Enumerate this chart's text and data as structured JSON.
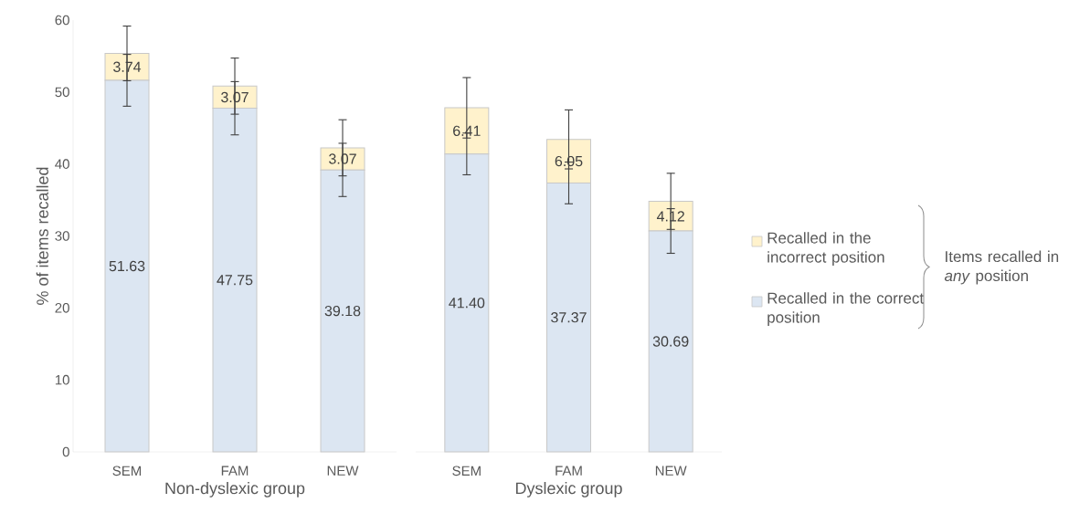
{
  "chart_data": [
    {
      "type": "bar",
      "stacked": true,
      "categories": [
        "SEM",
        "FAM",
        "NEW"
      ],
      "xlabel": "Non-dyslexic group",
      "ylabel": "% of items recalled",
      "ylim": [
        0,
        60
      ],
      "yticks": [
        0,
        10,
        20,
        30,
        40,
        50,
        60
      ],
      "series": [
        {
          "color": "#dce6f2",
          "values": [
            51.63,
            47.75,
            39.18
          ],
          "value_labels": [
            "51.63",
            "47.75",
            "39.18"
          ],
          "errors": [
            3.6,
            3.7,
            3.7
          ]
        },
        {
          "color": "#fff2cc",
          "values": [
            3.74,
            3.07,
            3.07
          ],
          "value_labels": [
            "3.74",
            "3.07",
            "3.07"
          ],
          "errors": [
            3.8,
            3.9,
            3.9
          ]
        }
      ]
    },
    {
      "type": "bar",
      "stacked": true,
      "categories": [
        "SEM",
        "FAM",
        "NEW"
      ],
      "xlabel": "Dyslexic group",
      "ylim": [
        0,
        60
      ],
      "tick_labels": "x",
      "legend": "right",
      "annotations": [
        "Items recalled in *any* position"
      ],
      "series": [
        {
          "name": "Recalled in the correct position",
          "color": "#dce6f2",
          "values": [
            41.4,
            37.37,
            30.69
          ],
          "value_labels": [
            "41.40",
            "37.37",
            "30.69"
          ],
          "errors": [
            2.9,
            2.9,
            3.1
          ]
        },
        {
          "name": "Recalled in the incorrect position",
          "color": "#fff2cc",
          "values": [
            6.41,
            6.05,
            4.12
          ],
          "value_labels": [
            "6.41",
            "6.05",
            "4.12"
          ],
          "errors": [
            4.2,
            4.1,
            3.9
          ]
        }
      ]
    }
  ]
}
